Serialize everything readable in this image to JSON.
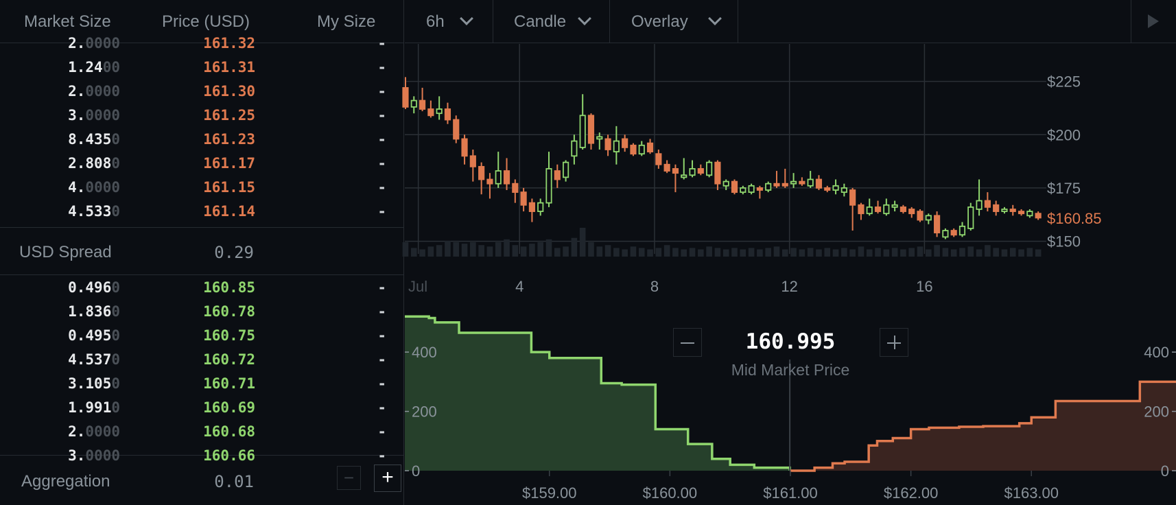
{
  "order_book": {
    "headers": {
      "market_size": "Market Size",
      "price": "Price (USD)",
      "my_size": "My Size"
    },
    "asks": [
      {
        "size_main": "2.",
        "size_dim": "0000",
        "price": "161.32",
        "my": "-"
      },
      {
        "size_main": "1.24",
        "size_dim": "00",
        "price": "161.31",
        "my": "-"
      },
      {
        "size_main": "2.",
        "size_dim": "0000",
        "price": "161.30",
        "my": "-"
      },
      {
        "size_main": "3.",
        "size_dim": "0000",
        "price": "161.25",
        "my": "-"
      },
      {
        "size_main": "8.435",
        "size_dim": "0",
        "price": "161.23",
        "my": "-"
      },
      {
        "size_main": "2.808",
        "size_dim": "0",
        "price": "161.17",
        "my": "-"
      },
      {
        "size_main": "4.",
        "size_dim": "0000",
        "price": "161.15",
        "my": "-"
      },
      {
        "size_main": "4.533",
        "size_dim": "0",
        "price": "161.14",
        "my": "-"
      }
    ],
    "spread": {
      "label": "USD Spread",
      "value": "0.29"
    },
    "bids": [
      {
        "size_main": "0.496",
        "size_dim": "0",
        "price": "160.85",
        "my": "-"
      },
      {
        "size_main": "1.836",
        "size_dim": "0",
        "price": "160.78",
        "my": "-"
      },
      {
        "size_main": "0.495",
        "size_dim": "0",
        "price": "160.75",
        "my": "-"
      },
      {
        "size_main": "4.537",
        "size_dim": "0",
        "price": "160.72",
        "my": "-"
      },
      {
        "size_main": "3.105",
        "size_dim": "0",
        "price": "160.71",
        "my": "-"
      },
      {
        "size_main": "1.991",
        "size_dim": "0",
        "price": "160.69",
        "my": "-"
      },
      {
        "size_main": "2.",
        "size_dim": "0000",
        "price": "160.68",
        "my": "-"
      },
      {
        "size_main": "3.",
        "size_dim": "0000",
        "price": "160.66",
        "my": "-"
      }
    ],
    "aggregation": {
      "label": "Aggregation",
      "value": "0.01",
      "minus": "−",
      "plus": "+"
    }
  },
  "toolbar": {
    "interval": "6h",
    "chart_type": "Candle",
    "overlay": "Overlay",
    "play_icon": "play-icon"
  },
  "colors": {
    "up": "#90d66e",
    "down": "#e07a4f",
    "background": "#0b0e13",
    "grid": "#2b3036",
    "text": "#8a939b"
  },
  "mid_market": {
    "price": "160.995",
    "label": "Mid Market Price"
  },
  "chart_data": [
    {
      "type": "candlestick",
      "x_ticks": [
        {
          "day": 1,
          "label": "Jul"
        },
        {
          "day": 4,
          "label": "4"
        },
        {
          "day": 8,
          "label": "8"
        },
        {
          "day": 12,
          "label": "12"
        },
        {
          "day": 16,
          "label": "16"
        }
      ],
      "y_ticks": [
        {
          "value": 150,
          "label": "$150"
        },
        {
          "value": 175,
          "label": "$175"
        },
        {
          "value": 200,
          "label": "$200"
        },
        {
          "value": 225,
          "label": "$225"
        }
      ],
      "ylim": [
        146,
        240
      ],
      "xlim": [
        0.6,
        19.55
      ],
      "last_price": {
        "value": 160.85,
        "label": "$160.85"
      },
      "candles": [
        {
          "d": 0.62,
          "o": 222,
          "h": 227,
          "l": 212,
          "c": 213
        },
        {
          "d": 0.87,
          "o": 213,
          "h": 218,
          "l": 210,
          "c": 216
        },
        {
          "d": 1.12,
          "o": 216,
          "h": 222,
          "l": 211,
          "c": 212
        },
        {
          "d": 1.37,
          "o": 212,
          "h": 216,
          "l": 208,
          "c": 209
        },
        {
          "d": 1.62,
          "o": 210,
          "h": 218,
          "l": 207,
          "c": 212
        },
        {
          "d": 1.87,
          "o": 212,
          "h": 215,
          "l": 205,
          "c": 207
        },
        {
          "d": 2.12,
          "o": 207,
          "h": 209,
          "l": 196,
          "c": 198
        },
        {
          "d": 2.37,
          "o": 198,
          "h": 200,
          "l": 186,
          "c": 190
        },
        {
          "d": 2.62,
          "o": 190,
          "h": 193,
          "l": 178,
          "c": 185
        },
        {
          "d": 2.87,
          "o": 185,
          "h": 187,
          "l": 172,
          "c": 179
        },
        {
          "d": 3.12,
          "o": 179,
          "h": 182,
          "l": 170,
          "c": 177
        },
        {
          "d": 3.37,
          "o": 177,
          "h": 192,
          "l": 175,
          "c": 183
        },
        {
          "d": 3.62,
          "o": 183,
          "h": 189,
          "l": 174,
          "c": 177
        },
        {
          "d": 3.87,
          "o": 177,
          "h": 179,
          "l": 168,
          "c": 173
        },
        {
          "d": 4.12,
          "o": 173,
          "h": 175,
          "l": 164,
          "c": 167
        },
        {
          "d": 4.37,
          "o": 168,
          "h": 170,
          "l": 159,
          "c": 164
        },
        {
          "d": 4.62,
          "o": 164,
          "h": 170,
          "l": 162,
          "c": 168
        },
        {
          "d": 4.87,
          "o": 168,
          "h": 192,
          "l": 166,
          "c": 184
        },
        {
          "d": 5.12,
          "o": 183,
          "h": 186,
          "l": 175,
          "c": 179
        },
        {
          "d": 5.37,
          "o": 180,
          "h": 188,
          "l": 178,
          "c": 187
        },
        {
          "d": 5.62,
          "o": 190,
          "h": 200,
          "l": 186,
          "c": 197
        },
        {
          "d": 5.87,
          "o": 194,
          "h": 219,
          "l": 193,
          "c": 209
        },
        {
          "d": 6.12,
          "o": 209,
          "h": 210,
          "l": 193,
          "c": 196
        },
        {
          "d": 6.37,
          "o": 198,
          "h": 201,
          "l": 193,
          "c": 199
        },
        {
          "d": 6.62,
          "o": 198,
          "h": 200,
          "l": 190,
          "c": 193
        },
        {
          "d": 6.87,
          "o": 192,
          "h": 204,
          "l": 186,
          "c": 197
        },
        {
          "d": 7.12,
          "o": 198,
          "h": 200,
          "l": 192,
          "c": 194
        },
        {
          "d": 7.37,
          "o": 195,
          "h": 196,
          "l": 190,
          "c": 191
        },
        {
          "d": 7.62,
          "o": 191,
          "h": 197,
          "l": 190,
          "c": 195
        },
        {
          "d": 7.87,
          "o": 196,
          "h": 198,
          "l": 191,
          "c": 192
        },
        {
          "d": 8.12,
          "o": 191,
          "h": 193,
          "l": 184,
          "c": 186
        },
        {
          "d": 8.37,
          "o": 186,
          "h": 188,
          "l": 182,
          "c": 183
        },
        {
          "d": 8.62,
          "o": 184,
          "h": 186,
          "l": 173,
          "c": 182
        },
        {
          "d": 8.87,
          "o": 180,
          "h": 189,
          "l": 179,
          "c": 181
        },
        {
          "d": 9.12,
          "o": 181,
          "h": 188,
          "l": 180,
          "c": 184
        },
        {
          "d": 9.37,
          "o": 184,
          "h": 186,
          "l": 181,
          "c": 182
        },
        {
          "d": 9.62,
          "o": 181,
          "h": 188,
          "l": 180,
          "c": 187
        },
        {
          "d": 9.87,
          "o": 187,
          "h": 188,
          "l": 174,
          "c": 177
        },
        {
          "d": 10.12,
          "o": 176,
          "h": 179,
          "l": 174,
          "c": 178
        },
        {
          "d": 10.37,
          "o": 178,
          "h": 179,
          "l": 172,
          "c": 173
        },
        {
          "d": 10.62,
          "o": 173,
          "h": 176,
          "l": 172,
          "c": 175
        },
        {
          "d": 10.87,
          "o": 173,
          "h": 177,
          "l": 172,
          "c": 176
        },
        {
          "d": 11.12,
          "o": 175,
          "h": 176,
          "l": 170,
          "c": 174
        },
        {
          "d": 11.37,
          "o": 174,
          "h": 178,
          "l": 173,
          "c": 177
        },
        {
          "d": 11.62,
          "o": 177,
          "h": 183,
          "l": 175,
          "c": 176
        },
        {
          "d": 11.87,
          "o": 177,
          "h": 184,
          "l": 175,
          "c": 176
        },
        {
          "d": 12.12,
          "o": 177,
          "h": 182,
          "l": 175,
          "c": 178
        },
        {
          "d": 12.37,
          "o": 178,
          "h": 180,
          "l": 176,
          "c": 177
        },
        {
          "d": 12.62,
          "o": 176,
          "h": 183,
          "l": 175,
          "c": 179
        },
        {
          "d": 12.87,
          "o": 179,
          "h": 181,
          "l": 174,
          "c": 175
        },
        {
          "d": 13.12,
          "o": 175,
          "h": 176,
          "l": 173,
          "c": 174
        },
        {
          "d": 13.37,
          "o": 174,
          "h": 179,
          "l": 172,
          "c": 176
        },
        {
          "d": 13.62,
          "o": 173,
          "h": 177,
          "l": 171,
          "c": 175
        },
        {
          "d": 13.87,
          "o": 174,
          "h": 175,
          "l": 155,
          "c": 167
        },
        {
          "d": 14.12,
          "o": 167,
          "h": 168,
          "l": 160,
          "c": 163
        },
        {
          "d": 14.37,
          "o": 163,
          "h": 170,
          "l": 162,
          "c": 166
        },
        {
          "d": 14.62,
          "o": 166,
          "h": 169,
          "l": 163,
          "c": 164
        },
        {
          "d": 14.87,
          "o": 163,
          "h": 170,
          "l": 162,
          "c": 167
        },
        {
          "d": 15.12,
          "o": 166,
          "h": 169,
          "l": 164,
          "c": 167
        },
        {
          "d": 15.37,
          "o": 166,
          "h": 167,
          "l": 163,
          "c": 164
        },
        {
          "d": 15.62,
          "o": 165,
          "h": 166,
          "l": 161,
          "c": 163
        },
        {
          "d": 15.87,
          "o": 164,
          "h": 165,
          "l": 159,
          "c": 160
        },
        {
          "d": 16.12,
          "o": 160,
          "h": 163,
          "l": 158,
          "c": 162
        },
        {
          "d": 16.37,
          "o": 162,
          "h": 164,
          "l": 152,
          "c": 154
        },
        {
          "d": 16.62,
          "o": 152,
          "h": 156,
          "l": 151,
          "c": 155
        },
        {
          "d": 16.87,
          "o": 155,
          "h": 156,
          "l": 152,
          "c": 153
        },
        {
          "d": 17.12,
          "o": 153,
          "h": 159,
          "l": 152,
          "c": 157
        },
        {
          "d": 17.37,
          "o": 156,
          "h": 168,
          "l": 155,
          "c": 166
        },
        {
          "d": 17.62,
          "o": 165,
          "h": 179,
          "l": 162,
          "c": 169
        },
        {
          "d": 17.87,
          "o": 169,
          "h": 173,
          "l": 164,
          "c": 166
        },
        {
          "d": 18.12,
          "o": 167,
          "h": 169,
          "l": 162,
          "c": 164
        },
        {
          "d": 18.37,
          "o": 164,
          "h": 166,
          "l": 163,
          "c": 165
        },
        {
          "d": 18.62,
          "o": 165,
          "h": 167,
          "l": 162,
          "c": 164
        },
        {
          "d": 18.87,
          "o": 164,
          "h": 165,
          "l": 162,
          "c": 163
        },
        {
          "d": 19.12,
          "o": 162,
          "h": 165,
          "l": 161,
          "c": 164
        },
        {
          "d": 19.37,
          "o": 163,
          "h": 164,
          "l": 160,
          "c": 161
        }
      ],
      "volume": [
        20,
        12,
        10,
        14,
        16,
        22,
        20,
        18,
        20,
        16,
        14,
        20,
        24,
        16,
        14,
        18,
        20,
        24,
        12,
        14,
        26,
        40,
        20,
        14,
        16,
        12,
        10,
        14,
        12,
        10,
        12,
        16,
        12,
        10,
        12,
        10,
        14,
        12,
        10,
        12,
        10,
        12,
        10,
        12,
        14,
        10,
        12,
        10,
        12,
        10,
        12,
        10,
        12,
        10,
        14,
        10,
        12,
        10,
        12,
        10,
        12,
        14,
        10,
        16,
        12,
        10,
        12,
        14,
        10,
        16,
        12,
        10,
        12,
        10,
        12,
        10
      ]
    },
    {
      "type": "area",
      "x_ticks": [
        {
          "value": 159,
          "label": "$159.00"
        },
        {
          "value": 160,
          "label": "$160.00"
        },
        {
          "value": 161,
          "label": "$161.00"
        },
        {
          "value": 162,
          "label": "$162.00"
        },
        {
          "value": 163,
          "label": "$163.00"
        }
      ],
      "y_ticks": [
        {
          "value": 0,
          "label": "0"
        },
        {
          "value": 200,
          "label": "200"
        },
        {
          "value": 400,
          "label": "400"
        }
      ],
      "xlim": [
        157.8,
        164.2
      ],
      "ylim": [
        0,
        560
      ],
      "mid_price": 160.995,
      "series": [
        {
          "side": "bid",
          "x": [
            157.8,
            158.0,
            158.05,
            158.25,
            158.45,
            158.85,
            159.0,
            159.37,
            159.43,
            159.6,
            159.88,
            160.15,
            160.35,
            160.5,
            160.7,
            160.995
          ],
          "y": [
            520,
            515,
            500,
            465,
            465,
            400,
            380,
            380,
            295,
            290,
            140,
            90,
            40,
            20,
            10,
            0
          ]
        },
        {
          "side": "ask",
          "x": [
            160.995,
            161.2,
            161.35,
            161.45,
            161.65,
            161.72,
            161.85,
            162.0,
            162.15,
            162.3,
            162.4,
            162.6,
            162.9,
            163.0,
            163.2,
            163.9,
            164.2
          ],
          "y": [
            0,
            10,
            25,
            30,
            85,
            100,
            110,
            140,
            145,
            145,
            148,
            150,
            160,
            180,
            235,
            300,
            300
          ]
        }
      ]
    }
  ]
}
